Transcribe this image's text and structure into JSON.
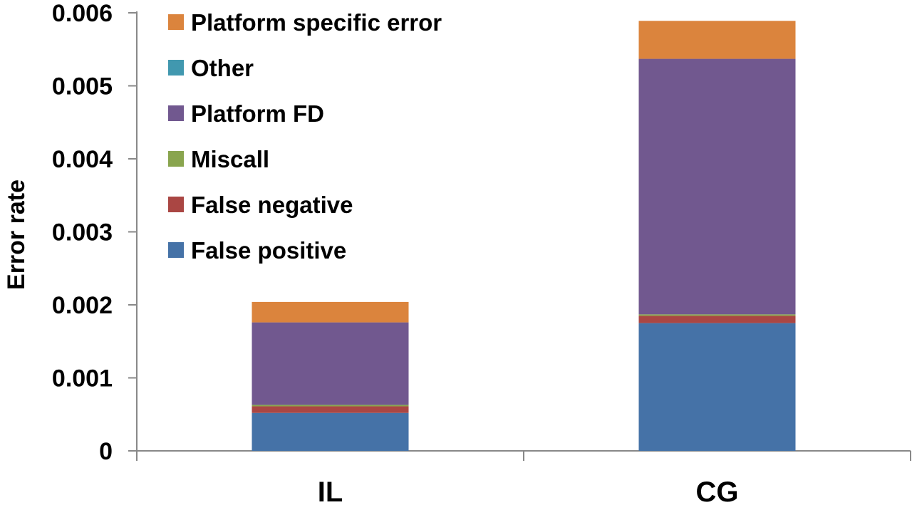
{
  "chart_data": {
    "type": "bar",
    "stacked": true,
    "categories": [
      "IL",
      "CG"
    ],
    "ylabel": "Error rate",
    "xlabel": "",
    "ylim": [
      0,
      0.006
    ],
    "yticks": [
      0,
      0.001,
      0.002,
      0.003,
      0.004,
      0.005,
      0.006
    ],
    "ytick_labels": [
      "0",
      "0.001",
      "0.002",
      "0.003",
      "0.004",
      "0.005",
      "0.006"
    ],
    "grid": false,
    "legend_position": "top-left, inside plot",
    "series": [
      {
        "name": "False positive",
        "color": "#4572a7",
        "values": [
          0.00052,
          0.00175
        ]
      },
      {
        "name": "False negative",
        "color": "#aa4643",
        "values": [
          9e-05,
          0.0001
        ]
      },
      {
        "name": "Miscall",
        "color": "#89a54e",
        "values": [
          2e-05,
          2e-05
        ]
      },
      {
        "name": "Platform FD",
        "color": "#71588f",
        "values": [
          0.00113,
          0.0035
        ]
      },
      {
        "name": "Other",
        "color": "#4198af",
        "values": [
          0.0,
          0.0
        ]
      },
      {
        "name": "Platform specific error",
        "color": "#db843d",
        "values": [
          0.00028,
          0.00052
        ]
      }
    ],
    "legend_order": [
      "Platform specific error",
      "Other",
      "Platform FD",
      "Miscall",
      "False negative",
      "False positive"
    ]
  }
}
